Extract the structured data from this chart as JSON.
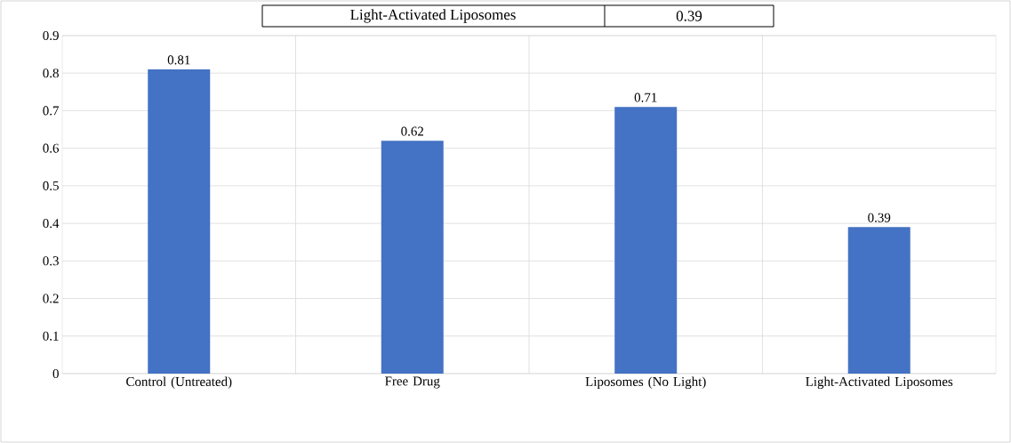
{
  "chart_data": {
    "type": "bar",
    "categories": [
      "Control (Untreated)",
      "Free Drug",
      "Liposomes (No Light)",
      "Light-Activated Liposomes"
    ],
    "values": [
      0.81,
      0.62,
      0.71,
      0.39
    ],
    "color": "#4472c4",
    "ylim": [
      0,
      0.9
    ],
    "yticks": [
      0,
      0.1,
      0.2,
      0.3,
      0.4,
      0.5,
      0.6,
      0.7,
      0.8,
      0.9
    ],
    "grid": true,
    "data_labels": true,
    "annotations": [
      "Light-Activated Liposomes",
      "0.39"
    ]
  }
}
